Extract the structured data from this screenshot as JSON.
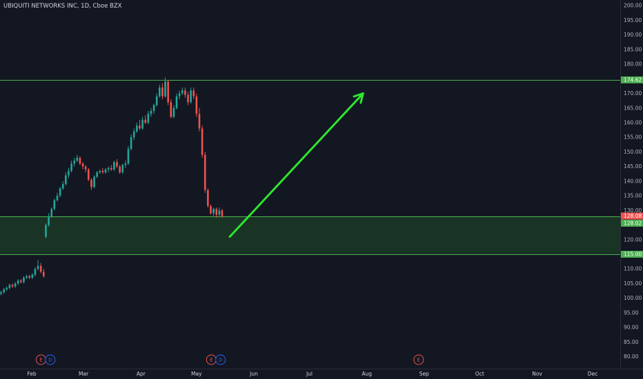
{
  "header": {
    "title": "UBIQUITI NETWORKS INC, 1D, Cboe BZX"
  },
  "colors": {
    "background": "#131722",
    "up": "#26a69a",
    "down": "#ef5350",
    "level_line": "#4caf50",
    "zone_fill": "#1b3a26",
    "arrow": "#2ee62e",
    "axis_border": "#2a2e39",
    "earnings_marker": "#ef5350",
    "dividend_marker": "#2962ff"
  },
  "chart_data": {
    "type": "candlestick",
    "y_axis": {
      "min": 78,
      "max": 201,
      "ticks": [
        80,
        85,
        90,
        95,
        100,
        105,
        110,
        115,
        120,
        125,
        130,
        135,
        140,
        145,
        150,
        155,
        160,
        165,
        170,
        175,
        180,
        185,
        190,
        195,
        200
      ],
      "tick_labels": [
        "80.00",
        "85.00",
        "90.00",
        "95.00",
        "100.00",
        "105.00",
        "110.00",
        "115.00",
        "120.00",
        "125.00",
        "130.00",
        "135.00",
        "140.00",
        "145.00",
        "150.00",
        "155.00",
        "160.00",
        "165.00",
        "170.00",
        "175.00",
        "180.00",
        "185.00",
        "190.00",
        "195.00",
        "200.00"
      ]
    },
    "x_axis": {
      "labels": [
        "Feb",
        "Mar",
        "Apr",
        "May",
        "Jun",
        "Jul",
        "Aug",
        "Sep",
        "Oct",
        "Nov",
        "Dec"
      ]
    },
    "levels": [
      {
        "value": 174.62,
        "label": "174.62"
      },
      {
        "value": 128.02,
        "label": "128.02"
      },
      {
        "value": 115.0,
        "label": "115.00"
      }
    ],
    "last_price": {
      "value": 128.08,
      "label": "128.08"
    },
    "zone": {
      "from": 115.0,
      "to": 128.02
    },
    "arrow": {
      "from": {
        "date": "2019-05-19",
        "value": 121
      },
      "to": {
        "date": "2019-07-30",
        "value": 170
      }
    },
    "events": [
      {
        "type": "E",
        "date": "2019-02-06"
      },
      {
        "type": "D",
        "date": "2019-02-11"
      },
      {
        "type": "E",
        "date": "2019-05-09"
      },
      {
        "type": "D",
        "date": "2019-05-14"
      },
      {
        "type": "E",
        "date": "2019-08-29"
      }
    ],
    "candles_early": [
      [
        101.5,
        102.5,
        101,
        102
      ],
      [
        102,
        103.5,
        101.5,
        103
      ],
      [
        103,
        104,
        102.5,
        103.5
      ],
      [
        103.5,
        105,
        103,
        104.5
      ],
      [
        104.5,
        105,
        103.5,
        104
      ],
      [
        104,
        105.5,
        103.5,
        105
      ],
      [
        105,
        106.5,
        104.5,
        106
      ],
      [
        106,
        106.5,
        105,
        105.5
      ],
      [
        105.5,
        107.5,
        105,
        107
      ],
      [
        107,
        108,
        106.5,
        107.5
      ],
      [
        107.5,
        108,
        106.5,
        107
      ],
      [
        107,
        108.5,
        106.5,
        108
      ],
      [
        108,
        110.5,
        107.5,
        110
      ],
      [
        110,
        113,
        109.5,
        111
      ],
      [
        111,
        112,
        108.5,
        109
      ],
      [
        109,
        110,
        107,
        107.5
      ]
    ],
    "candles_main": [
      [
        121,
        125.5,
        120.5,
        125
      ],
      [
        125,
        129,
        124.5,
        128
      ],
      [
        128,
        131,
        127.5,
        130.5
      ],
      [
        130.5,
        134,
        130,
        133.5
      ],
      [
        133.5,
        136,
        133,
        135
      ],
      [
        135,
        138,
        134.5,
        137.5
      ],
      [
        137.5,
        140,
        137,
        139
      ],
      [
        139,
        143,
        138.5,
        142
      ],
      [
        142,
        144.5,
        141,
        143.5
      ],
      [
        143.5,
        147,
        143,
        146
      ],
      [
        146,
        148,
        145,
        147
      ],
      [
        147,
        149,
        146.5,
        148
      ],
      [
        148,
        148.5,
        145.5,
        146
      ],
      [
        146,
        146.5,
        144,
        145
      ],
      [
        145,
        145.5,
        143,
        144
      ],
      [
        144,
        144.5,
        140,
        140.5
      ],
      [
        140.5,
        141,
        137,
        138
      ],
      [
        138,
        142,
        137.5,
        141.5
      ],
      [
        141.5,
        143.5,
        141,
        143
      ],
      [
        143,
        144,
        142.5,
        143.5
      ],
      [
        143.5,
        144.5,
        142.5,
        143
      ],
      [
        143,
        144.5,
        142.5,
        144
      ],
      [
        144,
        145,
        143,
        144.5
      ],
      [
        144.5,
        145.5,
        143.5,
        144
      ],
      [
        144,
        147,
        143.5,
        146.5
      ],
      [
        146.5,
        147.5,
        144.5,
        145
      ],
      [
        145,
        145.5,
        142.5,
        143
      ],
      [
        143,
        146,
        142.5,
        145.5
      ],
      [
        145.5,
        147,
        144.5,
        146
      ],
      [
        146,
        152,
        145.5,
        151
      ],
      [
        151,
        156,
        150.5,
        155
      ],
      [
        155,
        158,
        154,
        157
      ],
      [
        157,
        160,
        156.5,
        159
      ],
      [
        159,
        161,
        157.5,
        158
      ],
      [
        158,
        162,
        157.5,
        161
      ],
      [
        161,
        162.5,
        159.5,
        160
      ],
      [
        160,
        164,
        159.5,
        163
      ],
      [
        163,
        165,
        162,
        164
      ],
      [
        164,
        166.5,
        163,
        166
      ],
      [
        166,
        170,
        165.5,
        169
      ],
      [
        169,
        173,
        168.5,
        172
      ],
      [
        172,
        173.5,
        168,
        169
      ],
      [
        169,
        175.5,
        168.5,
        174
      ],
      [
        174,
        174.5,
        166,
        167
      ],
      [
        167,
        168,
        161.5,
        162
      ],
      [
        162,
        166,
        161.5,
        165
      ],
      [
        165,
        170,
        164.5,
        169
      ],
      [
        169,
        171,
        168,
        170
      ],
      [
        170,
        172,
        169.5,
        171
      ],
      [
        171,
        172,
        168.5,
        169.5
      ],
      [
        169.5,
        170.5,
        166,
        167
      ],
      [
        167,
        172,
        166.5,
        171
      ],
      [
        171,
        172,
        168,
        169
      ],
      [
        169,
        170,
        162,
        163
      ],
      [
        163,
        165,
        157,
        158
      ],
      [
        158,
        159,
        148,
        149
      ],
      [
        149,
        150,
        136,
        137
      ],
      [
        137,
        137.5,
        131,
        131.5
      ],
      [
        131.5,
        132,
        128.5,
        129
      ],
      [
        129,
        131,
        128,
        130.5
      ],
      [
        130.5,
        131,
        127.5,
        128.5
      ],
      [
        128.5,
        131,
        128,
        130
      ],
      [
        130,
        130.5,
        127.5,
        128.08
      ]
    ]
  }
}
